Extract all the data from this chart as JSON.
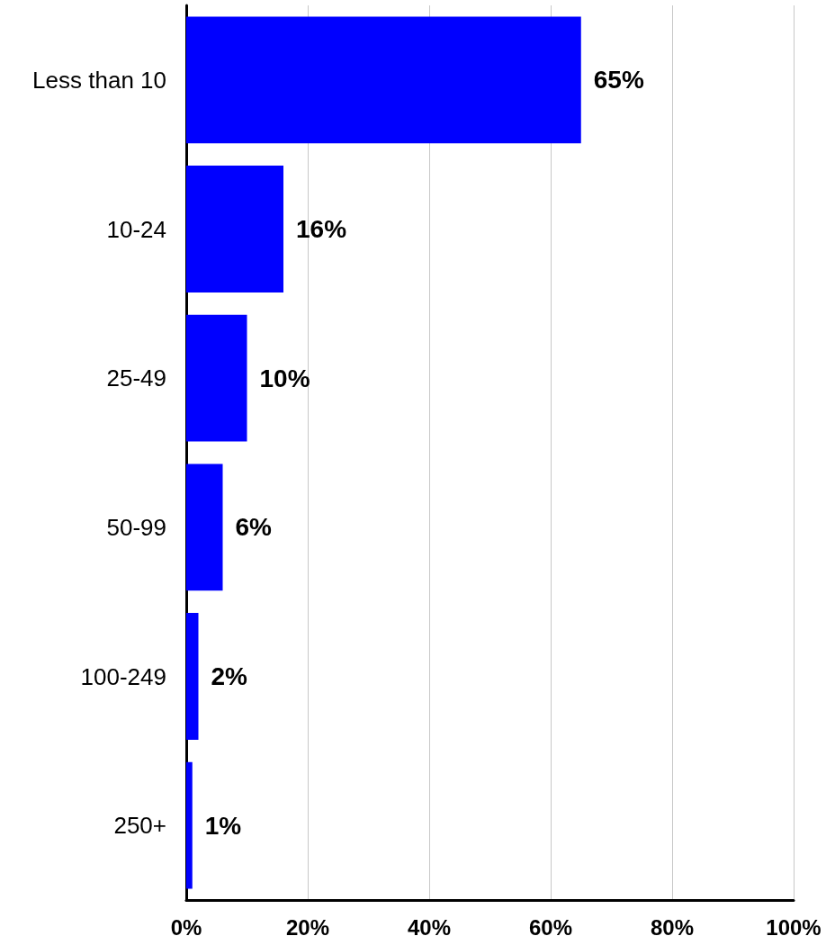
{
  "chart_data": {
    "type": "bar",
    "orientation": "horizontal",
    "categories": [
      "Less than 10",
      "10-24",
      "25-49",
      "50-99",
      "100-249",
      "250+"
    ],
    "values": [
      65,
      16,
      10,
      6,
      2,
      1
    ],
    "value_labels": [
      "65%",
      "16%",
      "10%",
      "6%",
      "2%",
      "1%"
    ],
    "color": "#0000ff",
    "xlim": [
      0,
      100
    ],
    "xticks": [
      {
        "value": 0,
        "label": "0%"
      },
      {
        "value": 20,
        "label": "20%"
      },
      {
        "value": 40,
        "label": "40%"
      },
      {
        "value": 60,
        "label": "60%"
      },
      {
        "value": 80,
        "label": "80%"
      },
      {
        "value": 100,
        "label": "100%"
      }
    ],
    "grid": "x"
  }
}
